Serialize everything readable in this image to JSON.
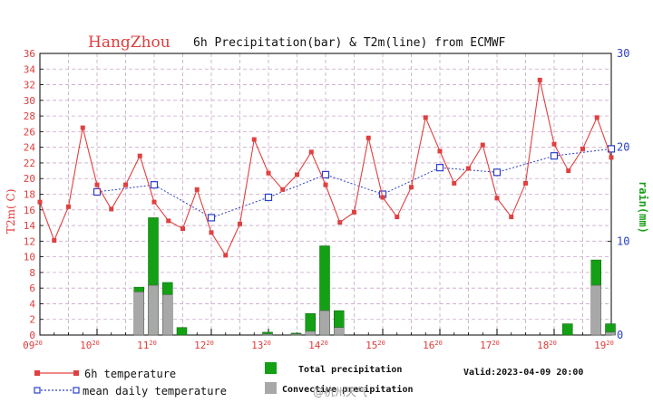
{
  "chart_data": {
    "type": "bar+line",
    "title": {
      "city": "HangZhou",
      "text": "6h Precipitation(bar) & T2m(line) from ECMWF"
    },
    "ylabel_left": "T2m( C)",
    "ylabel_right": "rain(mm)",
    "ylim_left": [
      0,
      36
    ],
    "ylim_right": [
      0,
      30
    ],
    "yticks_left": [
      "0",
      "2",
      "4",
      "6",
      "8",
      "10",
      "12",
      "14",
      "16",
      "18",
      "20",
      "22",
      "24",
      "26",
      "28",
      "30",
      "32",
      "34",
      "36"
    ],
    "yticks_right": [
      "0",
      "10",
      "20",
      "30"
    ],
    "xrange": [
      0,
      40
    ],
    "xticks": [
      {
        "day": "09",
        "hour": "20"
      },
      {
        "day": "10",
        "hour": "20"
      },
      {
        "day": "11",
        "hour": "20"
      },
      {
        "day": "12",
        "hour": "20"
      },
      {
        "day": "13",
        "hour": "20"
      },
      {
        "day": "14",
        "hour": "20"
      },
      {
        "day": "15",
        "hour": "20"
      },
      {
        "day": "16",
        "hour": "20"
      },
      {
        "day": "17",
        "hour": "20"
      },
      {
        "day": "18",
        "hour": "20"
      },
      {
        "day": "19",
        "hour": "20"
      }
    ],
    "temperature_6h": [
      17.0,
      12.1,
      16.4,
      26.5,
      19.2,
      16.1,
      19.2,
      22.9,
      17.0,
      14.6,
      13.6,
      18.6,
      13.1,
      10.2,
      14.2,
      25.0,
      20.7,
      18.6,
      20.5,
      23.4,
      19.2,
      14.4,
      15.7,
      25.2,
      17.6,
      15.1,
      18.9,
      27.8,
      23.5,
      19.4,
      21.3,
      24.3,
      17.5,
      15.1,
      19.4,
      32.6,
      24.4,
      21.0,
      23.8,
      27.8,
      22.7
    ],
    "mean_daily_temperature": [
      {
        "x": 4,
        "value": 18.3
      },
      {
        "x": 8,
        "value": 19.2
      },
      {
        "x": 12,
        "value": 15.0
      },
      {
        "x": 16,
        "value": 17.6
      },
      {
        "x": 20,
        "value": 20.5
      },
      {
        "x": 24,
        "value": 18.0
      },
      {
        "x": 28,
        "value": 21.4
      },
      {
        "x": 32,
        "value": 20.8
      },
      {
        "x": 36,
        "value": 22.9
      },
      {
        "x": 40,
        "value": 23.8
      }
    ],
    "precipitation": [
      {
        "x": 7,
        "total": 5.1,
        "convective": 4.6
      },
      {
        "x": 8,
        "total": 12.5,
        "convective": 5.3
      },
      {
        "x": 9,
        "total": 5.6,
        "convective": 4.3
      },
      {
        "x": 10,
        "total": 0.8,
        "convective": 0.0
      },
      {
        "x": 16,
        "total": 0.3,
        "convective": 0.1
      },
      {
        "x": 18,
        "total": 0.2,
        "convective": 0.1
      },
      {
        "x": 19,
        "total": 2.3,
        "convective": 0.4
      },
      {
        "x": 20,
        "total": 9.5,
        "convective": 2.6
      },
      {
        "x": 21,
        "total": 2.6,
        "convective": 0.8
      },
      {
        "x": 37,
        "total": 1.2,
        "convective": 0.0
      },
      {
        "x": 39,
        "total": 8.0,
        "convective": 5.3
      },
      {
        "x": 40,
        "total": 1.2,
        "convective": 0.3
      }
    ],
    "legend": {
      "temp_6h": "6h temperature",
      "mean_temp": "mean daily temperature",
      "total_precip": "Total precipitation",
      "convective_precip": "Convective precipitation"
    },
    "valid": "Valid:2023-04-09 20:00",
    "colors": {
      "temp_line": "#e04040",
      "mean_line": "#2a3fc8",
      "total_bar": "#14a014",
      "convective_bar": "#a8a8a8",
      "grid": "#c8a8c8"
    }
  },
  "watermark": "@杭州天气"
}
